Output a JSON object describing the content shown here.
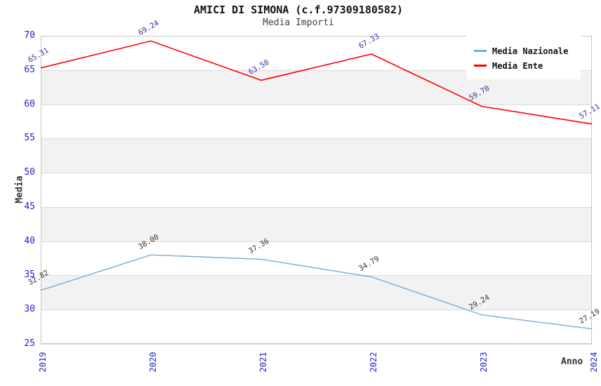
{
  "chart_data": {
    "type": "line",
    "title": "AMICI DI SIMONA (c.f.97309180582)",
    "subtitle": "Media Importi",
    "xlabel": "Anno",
    "ylabel": "Media",
    "x": [
      2019,
      2020,
      2021,
      2022,
      2023,
      2024
    ],
    "series": [
      {
        "name": "Media Nazionale",
        "color": "#77aadd",
        "label_color": "#333333",
        "values": [
          32.82,
          38.0,
          37.36,
          34.79,
          29.24,
          27.19
        ]
      },
      {
        "name": "Media Ente",
        "color": "#ff0000",
        "label_color": "#333399",
        "values": [
          65.31,
          69.24,
          63.5,
          67.33,
          59.7,
          57.11
        ]
      }
    ],
    "ylim": [
      25,
      70
    ],
    "ytick_step": 5,
    "grid": true,
    "legend_position": "top-right",
    "band_colors": [
      "#ffffff",
      "#f2f2f2"
    ],
    "tick_label_color": "#2222cc",
    "gridline_color": "#d9d9d9"
  }
}
